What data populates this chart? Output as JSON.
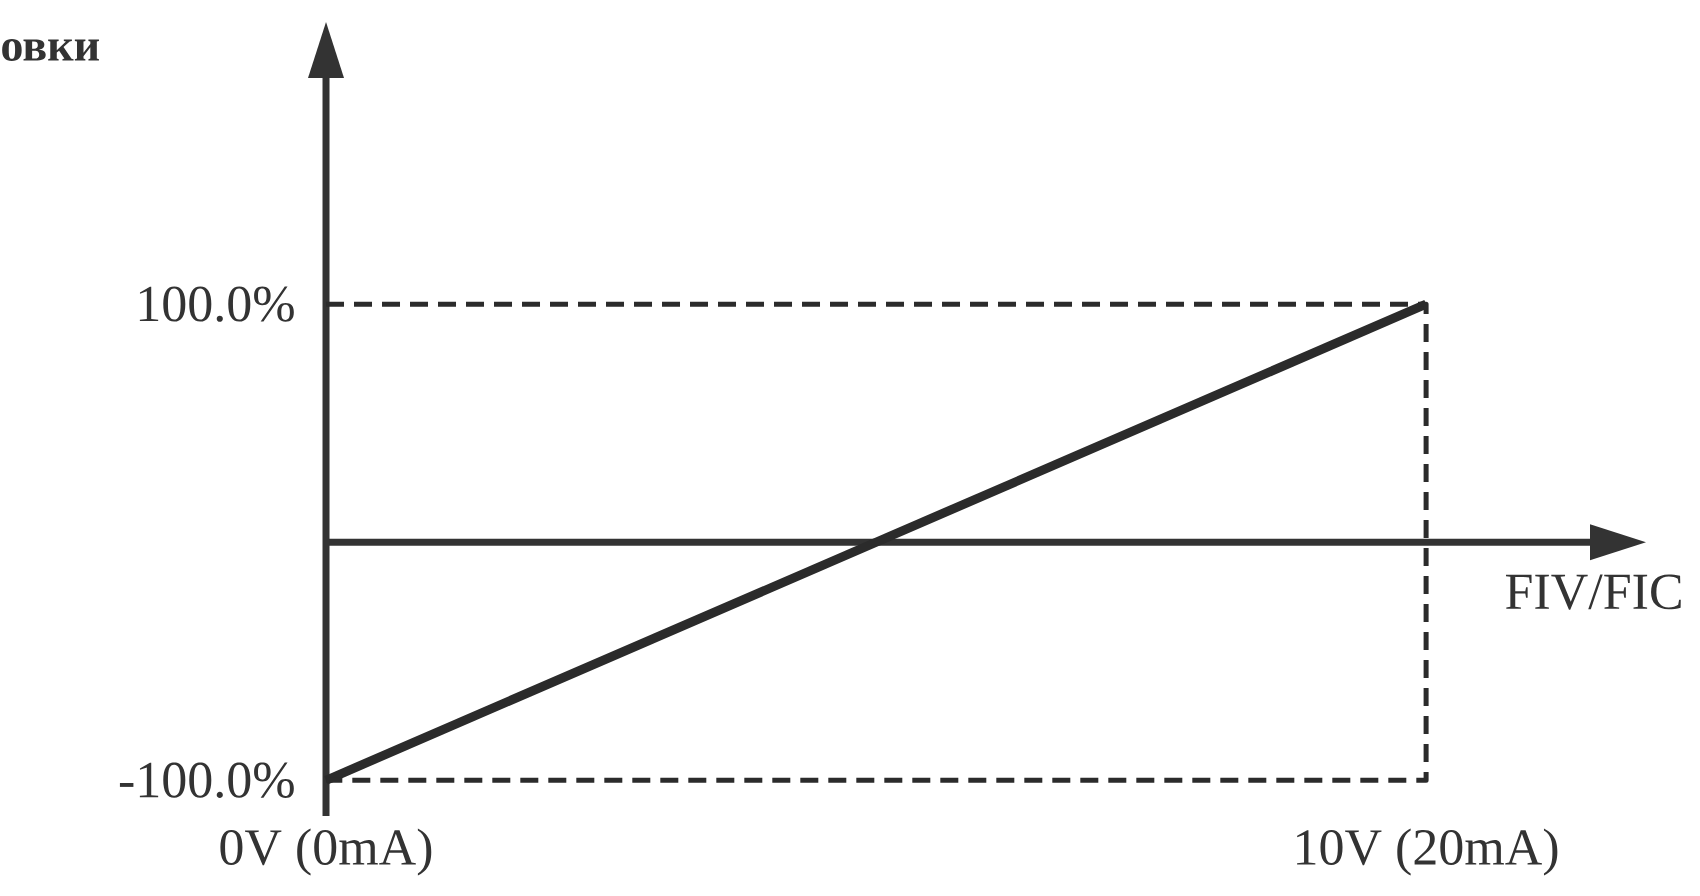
{
  "chart_data": {
    "type": "line",
    "title": "овки",
    "xlabel": "FIV/FIC",
    "categories": [
      "0V (0mA)",
      "10V (20mA)"
    ],
    "ylim": [
      -115,
      195
    ],
    "yticks": [
      {
        "value": -100,
        "label": "-100.0%"
      },
      {
        "value": 100,
        "label": "100.0%"
      }
    ],
    "marker": "none",
    "line_style": "solid",
    "series": [
      {
        "color": "#2b2b2b",
        "values": [
          -100,
          100
        ]
      },
      {
        "color": "#2b2b2b",
        "line_style": "dashed",
        "x": [
          "0V (0mA)",
          "10V (20mA)",
          "10V (20mA)",
          "0V (0mA)"
        ],
        "values": [
          100,
          100,
          -100,
          -100
        ]
      }
    ]
  }
}
